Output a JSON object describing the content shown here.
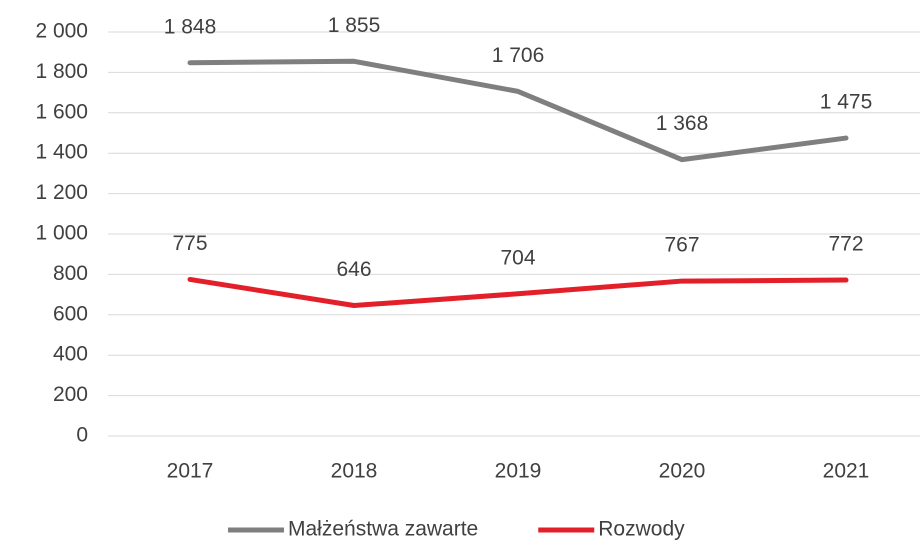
{
  "chart_data": {
    "type": "line",
    "categories": [
      "2017",
      "2018",
      "2019",
      "2020",
      "2021"
    ],
    "series": [
      {
        "name": "Małżeństwa zawarte",
        "color": "#7f7f7f",
        "values": [
          1848,
          1855,
          1706,
          1368,
          1475
        ],
        "value_labels": [
          "1 848",
          "1 855",
          "1 706",
          "1 368",
          "1 475"
        ]
      },
      {
        "name": "Rozwody",
        "color": "#e3202a",
        "values": [
          775,
          646,
          704,
          767,
          772
        ]
      }
    ],
    "ylim": [
      0,
      2000
    ],
    "yticks": [
      0,
      200,
      400,
      600,
      800,
      {
        "value": 1000,
        "label": "1 000"
      },
      {
        "value": 1200,
        "label": "1 200"
      },
      {
        "value": 1400,
        "label": "1 400"
      },
      {
        "value": 1600,
        "label": "1 600"
      },
      {
        "value": 1800,
        "label": "1 800"
      },
      {
        "value": 2000,
        "label": "2 000"
      }
    ],
    "grid": true,
    "legend": "bottom"
  }
}
